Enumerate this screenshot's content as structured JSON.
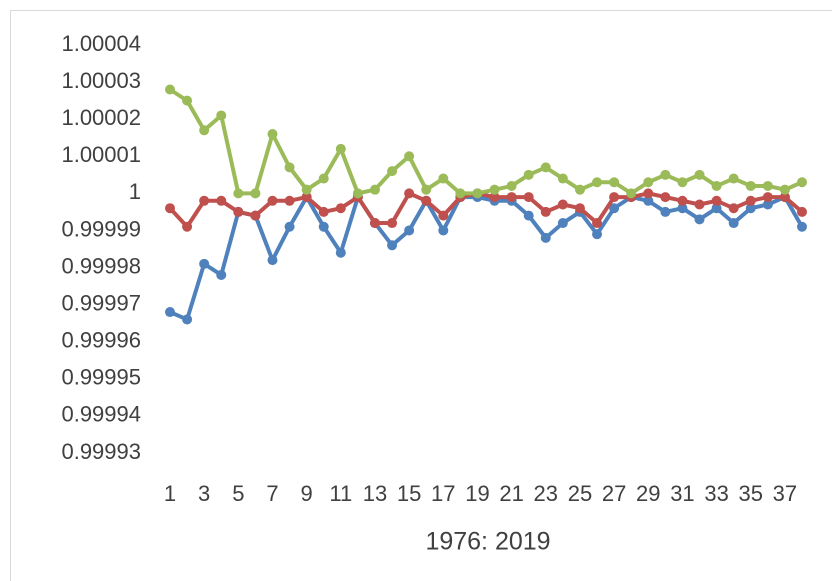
{
  "chart_data": {
    "type": "line",
    "categories": [
      1,
      null,
      3,
      null,
      5,
      null,
      7,
      null,
      9,
      null,
      11,
      null,
      13,
      null,
      15,
      null,
      17,
      null,
      19,
      null,
      21,
      null,
      23,
      null,
      25,
      null,
      27,
      null,
      29,
      null,
      31,
      null,
      33,
      null,
      35,
      null,
      37,
      null
    ],
    "x_label": "1976: 2019",
    "series": [
      {
        "color": "#4f81bd",
        "values": [
          0.999968,
          0.999966,
          0.999981,
          0.999978,
          0.999995,
          0.999994,
          0.999982,
          0.999991,
          0.999999,
          0.999991,
          0.999984,
          0.999999,
          0.999992,
          0.999986,
          0.99999,
          0.999998,
          0.99999,
          0.999999,
          0.999999,
          0.999998,
          0.999998,
          0.999994,
          0.999988,
          0.999992,
          0.999995,
          0.999989,
          0.999996,
          0.999999,
          0.999998,
          0.999995,
          0.999996,
          0.999993,
          0.999996,
          0.999992,
          0.999996,
          0.999997,
          0.999999,
          0.999991
        ]
      },
      {
        "color": "#c0504d",
        "values": [
          0.999996,
          0.999991,
          0.999998,
          0.999998,
          0.999995,
          0.999994,
          0.999998,
          0.999998,
          0.999999,
          0.999995,
          0.999996,
          0.999999,
          0.999992,
          0.999992,
          1,
          0.999998,
          0.999994,
          0.999999,
          1,
          0.999999,
          0.999999,
          0.999999,
          0.999995,
          0.999997,
          0.999996,
          0.999992,
          0.999999,
          0.999999,
          1,
          0.999999,
          0.999998,
          0.999997,
          0.999998,
          0.999996,
          0.999998,
          0.999999,
          0.999999,
          0.999995
        ]
      },
      {
        "color": "#9bbb59",
        "values": [
          1.000028,
          1.000025,
          1.000017,
          1.000021,
          1,
          1,
          1.000016,
          1.000007,
          1.000001,
          1.000004,
          1.000012,
          1,
          1.000001,
          1.000006,
          1.00001,
          1.000001,
          1.000004,
          1,
          1,
          1.000001,
          1.000002,
          1.000005,
          1.000007,
          1.000004,
          1.000001,
          1.000003,
          1.000003,
          1,
          1.000003,
          1.000005,
          1.000003,
          1.000005,
          1.000002,
          1.000004,
          1.000002,
          1.000002,
          1.000001,
          1.000003
        ]
      }
    ],
    "ylim": [
      0.99993,
      1.00004
    ],
    "yticks": [
      0.99993,
      0.99994,
      0.99995,
      0.99996,
      0.99997,
      0.99998,
      0.99999,
      1,
      1.00001,
      1.00002,
      1.00003,
      1.00004
    ],
    "grid": false
  }
}
